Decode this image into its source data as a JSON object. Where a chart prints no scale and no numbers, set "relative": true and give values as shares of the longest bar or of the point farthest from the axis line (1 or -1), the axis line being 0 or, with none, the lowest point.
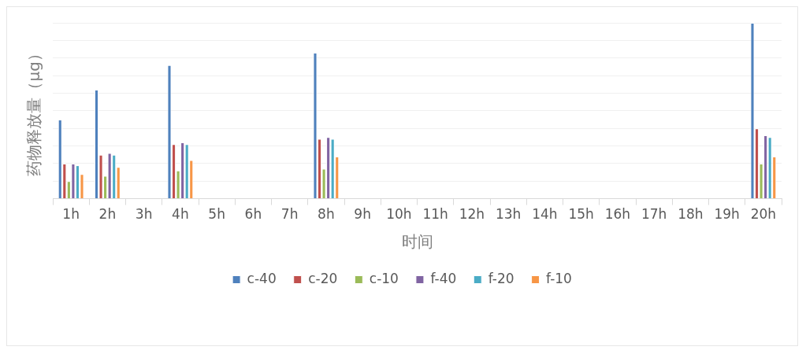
{
  "chart_data": {
    "type": "bar",
    "relative": true,
    "xlabel": "时间",
    "ylabel": "药物释放量（μg）",
    "grid": "y",
    "legend": "bottom",
    "categories": [
      "1h",
      "2h",
      "3h",
      "4h",
      "5h",
      "6h",
      "7h",
      "8h",
      "9h",
      "10h",
      "11h",
      "12h",
      "13h",
      "14h",
      "15h",
      "16h",
      "17h",
      "18h",
      "19h",
      "20h"
    ],
    "series": [
      {
        "name": "c-40",
        "color": "#4f81bd",
        "values": [
          0.45,
          0.62,
          null,
          0.76,
          null,
          null,
          null,
          0.83,
          null,
          null,
          null,
          null,
          null,
          null,
          null,
          null,
          null,
          null,
          null,
          1
        ]
      },
      {
        "name": "c-20",
        "color": "#c0504d",
        "values": [
          0.2,
          0.25,
          null,
          0.31,
          null,
          null,
          null,
          0.34,
          null,
          null,
          null,
          null,
          null,
          null,
          null,
          null,
          null,
          null,
          null,
          0.4
        ]
      },
      {
        "name": "c-10",
        "color": "#9bbb59",
        "values": [
          0.1,
          0.13,
          null,
          0.16,
          null,
          null,
          null,
          0.17,
          null,
          null,
          null,
          null,
          null,
          null,
          null,
          null,
          null,
          null,
          null,
          0.2
        ]
      },
      {
        "name": "f-40",
        "color": "#8064a2",
        "values": [
          0.2,
          0.26,
          null,
          0.32,
          null,
          null,
          null,
          0.35,
          null,
          null,
          null,
          null,
          null,
          null,
          null,
          null,
          null,
          null,
          null,
          0.36
        ]
      },
      {
        "name": "f-20",
        "color": "#4bacc6",
        "values": [
          0.19,
          0.25,
          null,
          0.31,
          null,
          null,
          null,
          0.34,
          null,
          null,
          null,
          null,
          null,
          null,
          null,
          null,
          null,
          null,
          null,
          0.35
        ]
      },
      {
        "name": "f-10",
        "color": "#f79646",
        "values": [
          0.14,
          0.18,
          null,
          0.22,
          null,
          null,
          null,
          0.24,
          null,
          null,
          null,
          null,
          null,
          null,
          null,
          null,
          null,
          null,
          null,
          0.24
        ]
      }
    ]
  }
}
